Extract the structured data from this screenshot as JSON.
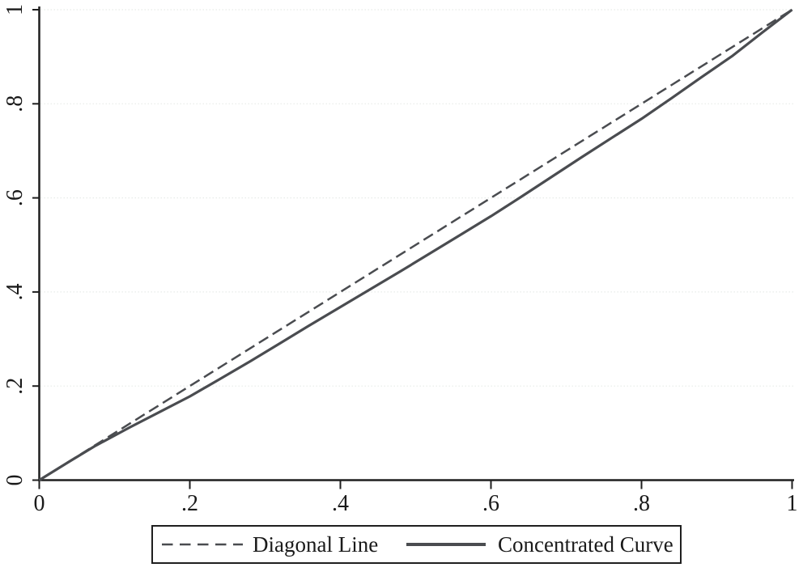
{
  "chart_data": {
    "type": "line",
    "title": "",
    "xlabel": "",
    "ylabel": "",
    "xlim": [
      0,
      1
    ],
    "ylim": [
      0,
      1
    ],
    "grid": "horizontal faint dotted gridlines at y tick values",
    "legend_position": "bottom-center, boxed, horizontal",
    "x_ticks": {
      "values": [
        0,
        0.2,
        0.4,
        0.6,
        0.8,
        1
      ],
      "labels": [
        "0",
        ".2",
        ".4",
        ".6",
        ".8",
        "1"
      ]
    },
    "y_ticks": {
      "values": [
        0,
        0.2,
        0.4,
        0.6,
        0.8,
        1
      ],
      "labels": [
        "0",
        ".2",
        ".4",
        ".6",
        ".8",
        "1"
      ]
    },
    "series": [
      {
        "name": "Diagonal Line",
        "style": "dashed",
        "color": "#4a4c50",
        "width": 2.5,
        "points": [
          [
            0,
            0
          ],
          [
            1,
            1
          ]
        ]
      },
      {
        "name": "Concentrated Curve",
        "style": "solid",
        "color": "#4a4c50",
        "width": 3.2,
        "points": [
          [
            0,
            0
          ],
          [
            0.04,
            0.0395
          ],
          [
            0.075,
            0.0735
          ],
          [
            0.12,
            0.112
          ],
          [
            0.16,
            0.145
          ],
          [
            0.2,
            0.178
          ],
          [
            0.24,
            0.215
          ],
          [
            0.28,
            0.2525
          ],
          [
            0.32,
            0.291
          ],
          [
            0.36,
            0.33
          ],
          [
            0.4,
            0.368
          ],
          [
            0.44,
            0.406
          ],
          [
            0.48,
            0.444
          ],
          [
            0.52,
            0.483
          ],
          [
            0.56,
            0.522
          ],
          [
            0.6,
            0.561
          ],
          [
            0.64,
            0.602
          ],
          [
            0.68,
            0.644
          ],
          [
            0.72,
            0.686
          ],
          [
            0.76,
            0.727
          ],
          [
            0.8,
            0.768
          ],
          [
            0.84,
            0.812
          ],
          [
            0.88,
            0.857
          ],
          [
            0.92,
            0.901
          ],
          [
            0.96,
            0.951
          ],
          [
            1,
            1
          ]
        ]
      }
    ]
  },
  "legend": {
    "items": [
      {
        "label": "Diagonal Line",
        "style": "dashed"
      },
      {
        "label": "Concentrated Curve",
        "style": "solid"
      }
    ]
  },
  "colors": {
    "background": "#ffffff",
    "axis": "#1f1f1f",
    "line": "#4a4c50",
    "gridline": "#e7ebe8",
    "text": "#1a1a1a"
  }
}
